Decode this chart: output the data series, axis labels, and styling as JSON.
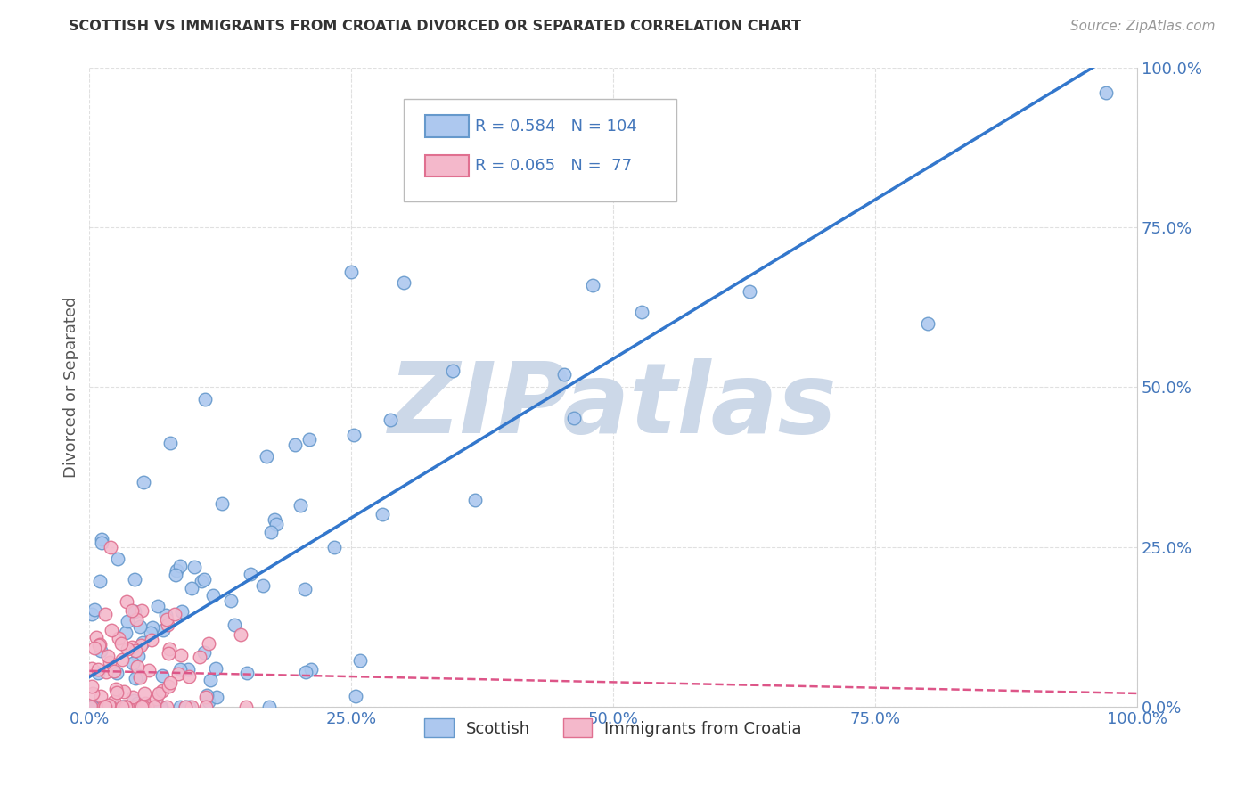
{
  "title": "SCOTTISH VS IMMIGRANTS FROM CROATIA DIVORCED OR SEPARATED CORRELATION CHART",
  "source": "Source: ZipAtlas.com",
  "ylabel": "Divorced or Separated",
  "watermark": "ZIPatlas",
  "xlim": [
    0.0,
    1.0
  ],
  "ylim": [
    0.0,
    1.0
  ],
  "xticks": [
    0.0,
    0.25,
    0.5,
    0.75,
    1.0
  ],
  "yticks": [
    0.0,
    0.25,
    0.5,
    0.75,
    1.0
  ],
  "xtick_labels": [
    "0.0%",
    "25.0%",
    "50.0%",
    "75.0%",
    "100.0%"
  ],
  "ytick_labels": [
    "0.0%",
    "25.0%",
    "50.0%",
    "75.0%",
    "100.0%"
  ],
  "legend_labels": [
    "Scottish",
    "Immigrants from Croatia"
  ],
  "legend_r": [
    0.584,
    0.065
  ],
  "legend_n": [
    104,
    77
  ],
  "series1_color": "#adc8ef",
  "series1_edge_color": "#6699cc",
  "series2_color": "#f4b8cb",
  "series2_edge_color": "#e07090",
  "trend1_color": "#3377cc",
  "trend2_color": "#dd5588",
  "grid_color": "#cccccc",
  "background_color": "#ffffff",
  "watermark_color": "#ccd8e8",
  "tick_label_color": "#4477bb",
  "title_color": "#333333",
  "source_color": "#999999"
}
